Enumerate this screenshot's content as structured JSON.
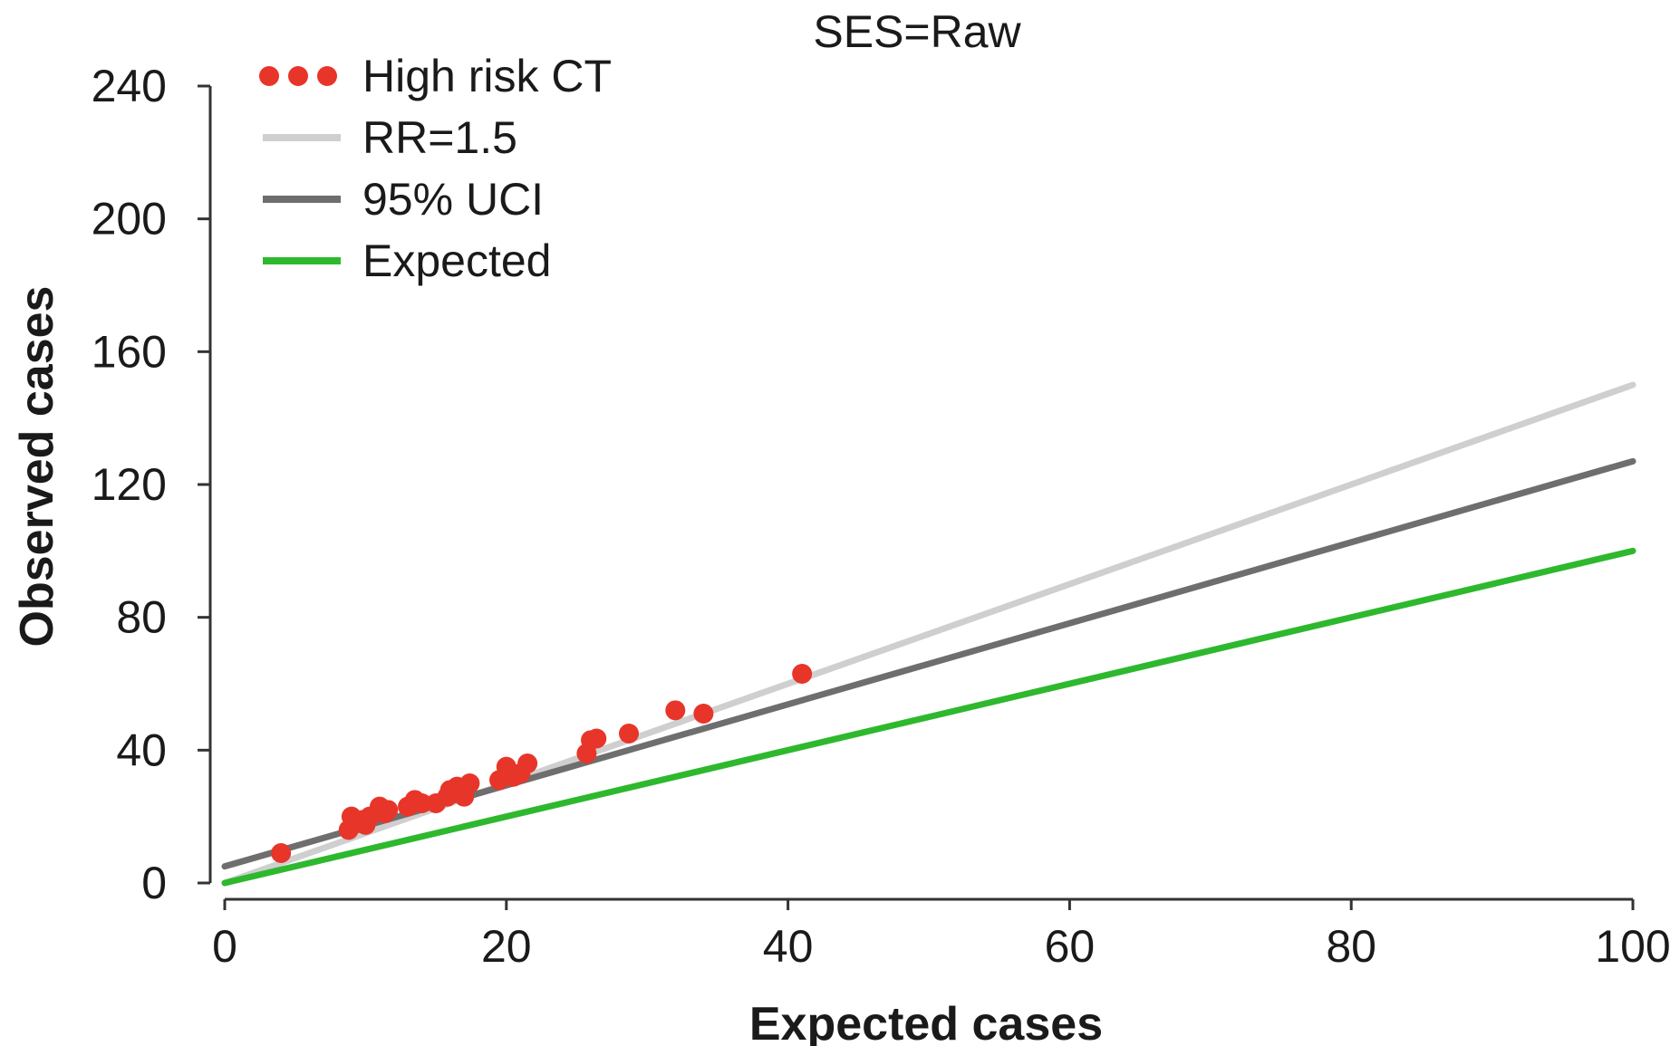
{
  "chart_data": {
    "type": "scatter",
    "title": "SES=Raw",
    "xlabel": "Expected cases",
    "ylabel": "Observed cases",
    "xlim": [
      0,
      100
    ],
    "ylim": [
      0,
      240
    ],
    "x_ticks": [
      0,
      20,
      40,
      60,
      80,
      100
    ],
    "y_ticks": [
      0,
      40,
      80,
      120,
      160,
      200,
      240
    ],
    "grid": false,
    "legend_position": "top-left",
    "series": [
      {
        "name": "High risk CT",
        "kind": "points",
        "color": "#e8352a",
        "points": [
          [
            4,
            9
          ],
          [
            8.8,
            16
          ],
          [
            9,
            20
          ],
          [
            9.4,
            18
          ],
          [
            9.8,
            19
          ],
          [
            10,
            17.5
          ],
          [
            10.3,
            20
          ],
          [
            11,
            23
          ],
          [
            11.4,
            21
          ],
          [
            11.6,
            22
          ],
          [
            13,
            23
          ],
          [
            13.5,
            25
          ],
          [
            14,
            24
          ],
          [
            15,
            24
          ],
          [
            15.8,
            26
          ],
          [
            16,
            28
          ],
          [
            16.5,
            29
          ],
          [
            17,
            26
          ],
          [
            17.4,
            30
          ],
          [
            19.5,
            31
          ],
          [
            20,
            35
          ],
          [
            20.5,
            32
          ],
          [
            21,
            33
          ],
          [
            21.5,
            36
          ],
          [
            25.7,
            39
          ],
          [
            26,
            43
          ],
          [
            26.4,
            43.5
          ],
          [
            28.7,
            45
          ],
          [
            32,
            52
          ],
          [
            34,
            51
          ],
          [
            41,
            63
          ]
        ]
      },
      {
        "name": "RR=1.5",
        "kind": "line",
        "color": "#cfcfcf",
        "points": [
          [
            0,
            0
          ],
          [
            100,
            150
          ]
        ]
      },
      {
        "name": "95% UCI",
        "kind": "line",
        "color": "#6e6e6e",
        "points": [
          [
            0,
            5
          ],
          [
            100,
            127
          ]
        ]
      },
      {
        "name": "Expected",
        "kind": "line",
        "color": "#2eb82e",
        "points": [
          [
            0,
            0
          ],
          [
            100,
            100
          ]
        ]
      }
    ]
  }
}
